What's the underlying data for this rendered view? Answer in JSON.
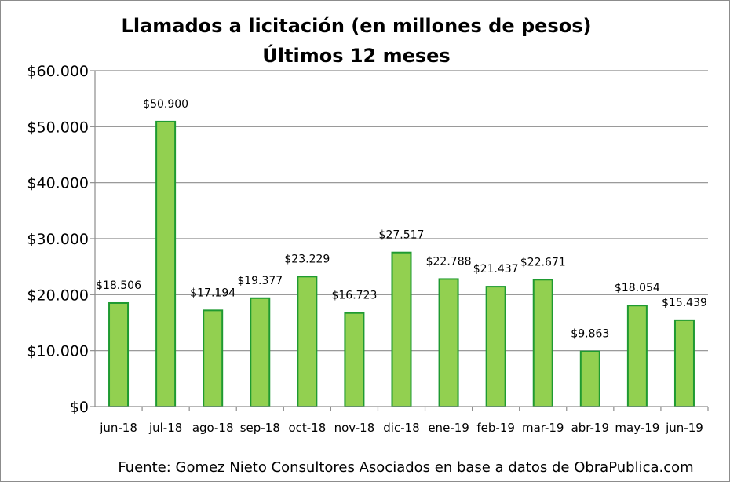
{
  "chart_data": {
    "type": "bar",
    "title": "Llamados a licitación (en millones de pesos)",
    "subtitle": "Últimos 12 meses",
    "categories": [
      "jun-18",
      "jul-18",
      "ago-18",
      "sep-18",
      "oct-18",
      "nov-18",
      "dic-18",
      "ene-19",
      "feb-19",
      "mar-19",
      "abr-19",
      "may-19",
      "jun-19"
    ],
    "values": [
      18506,
      50900,
      17194,
      19377,
      23229,
      16723,
      27517,
      22788,
      21437,
      22671,
      9863,
      18054,
      15439
    ],
    "data_labels": [
      "$18.506",
      "$50.900",
      "$17.194",
      "$19.377",
      "$23.229",
      "$16.723",
      "$27.517",
      "$22.788",
      "$21.437",
      "$22.671",
      "$9.863",
      "$18.054",
      "$15.439"
    ],
    "ylim": [
      0,
      60000
    ],
    "yticks": [
      0,
      10000,
      20000,
      30000,
      40000,
      50000,
      60000
    ],
    "ytick_labels": [
      "$0",
      "$10.000",
      "$20.000",
      "$30.000",
      "$40.000",
      "$50.000",
      "$60.000"
    ],
    "grid": true,
    "bar_fill": "#92d050",
    "bar_stroke": "#1f9a31",
    "source": "Fuente: Gomez Nieto Consultores Asociados en base a datos de ObraPublica.com"
  }
}
